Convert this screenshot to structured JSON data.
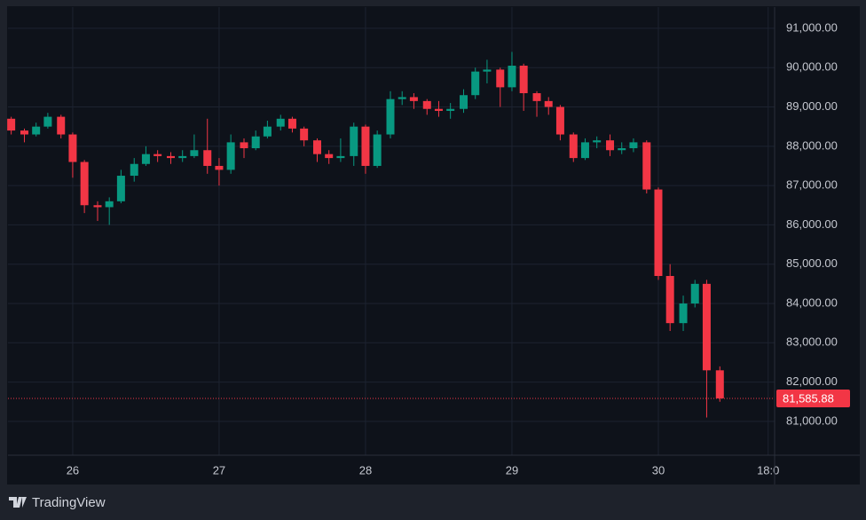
{
  "chart_data": {
    "type": "candlestick",
    "x": [
      25.58,
      25.67,
      25.75,
      25.83,
      25.92,
      26,
      26.08,
      26.17,
      26.25,
      26.33,
      26.42,
      26.5,
      26.58,
      26.67,
      26.75,
      26.83,
      26.92,
      27,
      27.08,
      27.17,
      27.25,
      27.33,
      27.42,
      27.5,
      27.58,
      27.67,
      27.75,
      27.83,
      27.92,
      28,
      28.08,
      28.17,
      28.25,
      28.33,
      28.42,
      28.5,
      28.58,
      28.67,
      28.75,
      28.83,
      28.92,
      29,
      29.08,
      29.17,
      29.25,
      29.33,
      29.42,
      29.5,
      29.58,
      29.67,
      29.75,
      29.83,
      29.92,
      30,
      30.08,
      30.17,
      30.25,
      30.33,
      30.42
    ],
    "open": [
      88700,
      88400,
      88300,
      88500,
      88750,
      88300,
      87600,
      86500,
      86450,
      86600,
      87250,
      87550,
      87800,
      87750,
      87700,
      87750,
      87900,
      87500,
      87400,
      88100,
      87950,
      88250,
      88500,
      88700,
      88450,
      88150,
      87800,
      87700,
      87750,
      88500,
      87500,
      88300,
      89200,
      89250,
      89150,
      88950,
      88900,
      88950,
      89300,
      89900,
      89950,
      89500,
      90050,
      89350,
      89150,
      89000,
      88300,
      87700,
      88100,
      88150,
      87900,
      87950,
      88100,
      86900,
      84700,
      83500,
      84000,
      84500,
      82300
    ],
    "high": [
      88750,
      88450,
      88600,
      88850,
      88800,
      88350,
      87650,
      86600,
      86700,
      87400,
      87700,
      88000,
      87900,
      87850,
      87900,
      88300,
      88700,
      87700,
      88300,
      88200,
      88400,
      88650,
      88800,
      88750,
      88500,
      88200,
      87900,
      88200,
      88600,
      88550,
      88400,
      89400,
      89400,
      89350,
      89200,
      89150,
      89100,
      89450,
      90000,
      90200,
      90000,
      90400,
      90100,
      89400,
      89250,
      89050,
      88350,
      88200,
      88250,
      88300,
      88100,
      88200,
      88150,
      86950,
      85000,
      84200,
      84600,
      84600,
      82400
    ],
    "low": [
      88300,
      88100,
      88250,
      88450,
      88200,
      87200,
      86300,
      86100,
      86000,
      86550,
      87100,
      87500,
      87600,
      87550,
      87600,
      87700,
      87300,
      87000,
      87300,
      87700,
      87900,
      88200,
      88400,
      88350,
      88000,
      87600,
      87550,
      87600,
      87500,
      87300,
      87450,
      88200,
      89050,
      88950,
      88800,
      88750,
      88700,
      88850,
      89200,
      89600,
      89000,
      89400,
      88900,
      88750,
      88800,
      88150,
      87600,
      87650,
      87950,
      87750,
      87800,
      87850,
      86800,
      84600,
      83300,
      83300,
      83900,
      81100,
      81500
    ],
    "close": [
      88400,
      88300,
      88500,
      88750,
      88300,
      87600,
      86500,
      86450,
      86600,
      87250,
      87550,
      87800,
      87750,
      87700,
      87750,
      87900,
      87500,
      87400,
      88100,
      87950,
      88250,
      88500,
      88700,
      88450,
      88150,
      87800,
      87700,
      87750,
      88500,
      87500,
      88300,
      89200,
      89250,
      89150,
      88950,
      88900,
      88950,
      89300,
      89900,
      89950,
      89500,
      90050,
      89350,
      89150,
      89000,
      88300,
      87700,
      88100,
      88150,
      87900,
      87950,
      88100,
      86900,
      84700,
      83500,
      84000,
      84500,
      82300,
      81585.88
    ],
    "up_color": "#089981",
    "down_color": "#f23645",
    "price_line": {
      "value": 81585.88,
      "label": "81,585.88"
    },
    "xlim": [
      25.558,
      30.794
    ],
    "xticks": [
      26,
      27,
      28,
      29,
      30,
      {
        "value": 30.75,
        "label": "18:0"
      }
    ],
    "ylim": [
      80140,
      91540
    ],
    "yticks": [
      {
        "value": 81000,
        "label": "81,000.00"
      },
      {
        "value": 82000,
        "label": "82,000.00"
      },
      {
        "value": 83000,
        "label": "83,000.00"
      },
      {
        "value": 84000,
        "label": "84,000.00"
      },
      {
        "value": 85000,
        "label": "85,000.00"
      },
      {
        "value": 86000,
        "label": "86,000.00"
      },
      {
        "value": 87000,
        "label": "87,000.00"
      },
      {
        "value": 88000,
        "label": "88,000.00"
      },
      {
        "value": 89000,
        "label": "89,000.00"
      },
      {
        "value": 90000,
        "label": "90,000.00"
      },
      {
        "value": 91000,
        "label": "91,000.00"
      }
    ],
    "grid": true
  },
  "brand": "TradingView"
}
